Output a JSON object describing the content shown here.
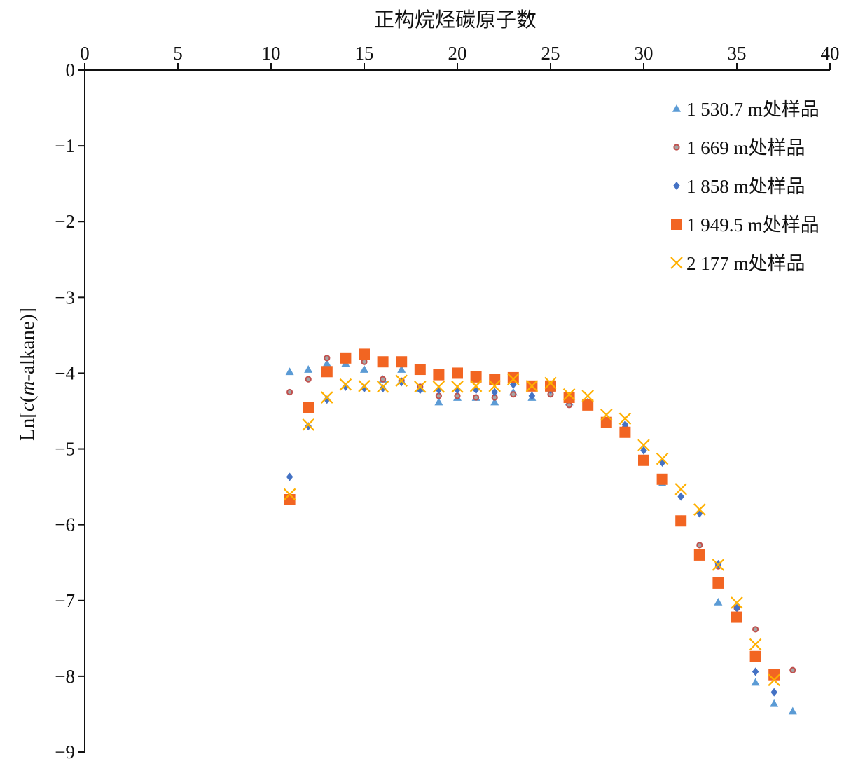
{
  "chart_data": {
    "type": "scatter",
    "xlabel": "正构烷烃碳原子数",
    "ylabel": "Ln[c(m-alkane)]",
    "xlim": [
      0,
      40
    ],
    "ylim": [
      -9,
      0
    ],
    "x_ticks": [
      "0",
      "5",
      "10",
      "15",
      "20",
      "25",
      "30",
      "35",
      "40"
    ],
    "y_ticks": [
      "0",
      "−1",
      "−2",
      "−3",
      "−4",
      "−5",
      "−6",
      "−7",
      "−8",
      "−9"
    ],
    "x_axis_position": "top",
    "legend_position": "top-right",
    "grid": false,
    "series": [
      {
        "name": "1 530.7 m处样品",
        "marker": "triangle",
        "color": "#5b9bd5",
        "points": [
          [
            11,
            -3.98
          ],
          [
            12,
            -3.95
          ],
          [
            13,
            -3.87
          ],
          [
            14,
            -3.87
          ],
          [
            15,
            -3.95
          ],
          [
            16,
            -4.08
          ],
          [
            17,
            -3.95
          ],
          [
            18,
            -4.2
          ],
          [
            19,
            -4.38
          ],
          [
            20,
            -4.32
          ],
          [
            21,
            -4.32
          ],
          [
            22,
            -4.38
          ],
          [
            23,
            -4.25
          ],
          [
            24,
            -4.32
          ],
          [
            25,
            -4.2
          ],
          [
            26,
            -4.38
          ],
          [
            27,
            -4.42
          ],
          [
            28,
            -4.68
          ],
          [
            29,
            -4.75
          ],
          [
            30,
            -5.15
          ],
          [
            31,
            -5.45
          ],
          [
            32,
            -5.95
          ],
          [
            33,
            -6.4
          ],
          [
            34,
            -7.02
          ],
          [
            35,
            -7.2
          ],
          [
            36,
            -8.08
          ],
          [
            37,
            -8.36
          ],
          [
            38,
            -8.46
          ]
        ]
      },
      {
        "name": "1 669 m处样品",
        "marker": "circle",
        "color": "#a5a5a5",
        "edge": "#c0504d",
        "points": [
          [
            11,
            -4.25
          ],
          [
            12,
            -4.08
          ],
          [
            13,
            -3.8
          ],
          [
            14,
            -3.82
          ],
          [
            15,
            -3.85
          ],
          [
            16,
            -4.08
          ],
          [
            17,
            -4.1
          ],
          [
            18,
            -4.18
          ],
          [
            19,
            -4.3
          ],
          [
            20,
            -4.3
          ],
          [
            21,
            -4.32
          ],
          [
            22,
            -4.32
          ],
          [
            23,
            -4.28
          ],
          [
            24,
            -4.2
          ],
          [
            25,
            -4.28
          ],
          [
            26,
            -4.42
          ],
          [
            27,
            -4.42
          ],
          [
            28,
            -4.62
          ],
          [
            29,
            -4.72
          ],
          [
            30,
            -5.12
          ],
          [
            31,
            -5.42
          ],
          [
            32,
            -5.92
          ],
          [
            33,
            -6.27
          ],
          [
            34,
            -6.55
          ],
          [
            35,
            -7.1
          ],
          [
            36,
            -7.38
          ],
          [
            37,
            -7.98
          ],
          [
            38,
            -7.92
          ]
        ]
      },
      {
        "name": "1 858 m处样品",
        "marker": "diamond",
        "color": "#4472c4",
        "points": [
          [
            11,
            -5.37
          ],
          [
            12,
            -4.7
          ],
          [
            13,
            -4.35
          ],
          [
            14,
            -4.18
          ],
          [
            15,
            -4.2
          ],
          [
            16,
            -4.2
          ],
          [
            17,
            -4.12
          ],
          [
            18,
            -4.22
          ],
          [
            19,
            -4.22
          ],
          [
            20,
            -4.22
          ],
          [
            21,
            -4.22
          ],
          [
            22,
            -4.25
          ],
          [
            23,
            -4.15
          ],
          [
            24,
            -4.3
          ],
          [
            25,
            -4.22
          ],
          [
            26,
            -4.32
          ],
          [
            27,
            -4.38
          ],
          [
            28,
            -4.65
          ],
          [
            29,
            -4.68
          ],
          [
            30,
            -5.02
          ],
          [
            31,
            -5.18
          ],
          [
            32,
            -5.63
          ],
          [
            33,
            -5.85
          ],
          [
            34,
            -6.52
          ],
          [
            35,
            -7.1
          ],
          [
            36,
            -7.94
          ],
          [
            37,
            -8.21
          ]
        ]
      },
      {
        "name": "1 949.5 m处样品",
        "marker": "square",
        "color": "#f26522",
        "points": [
          [
            11,
            -5.67
          ],
          [
            12,
            -4.45
          ],
          [
            13,
            -3.98
          ],
          [
            14,
            -3.8
          ],
          [
            15,
            -3.75
          ],
          [
            16,
            -3.85
          ],
          [
            17,
            -3.85
          ],
          [
            18,
            -3.95
          ],
          [
            19,
            -4.02
          ],
          [
            20,
            -4.0
          ],
          [
            21,
            -4.05
          ],
          [
            22,
            -4.08
          ],
          [
            23,
            -4.06
          ],
          [
            24,
            -4.17
          ],
          [
            25,
            -4.17
          ],
          [
            26,
            -4.32
          ],
          [
            27,
            -4.42
          ],
          [
            28,
            -4.65
          ],
          [
            29,
            -4.78
          ],
          [
            30,
            -5.15
          ],
          [
            31,
            -5.4
          ],
          [
            32,
            -5.95
          ],
          [
            33,
            -6.4
          ],
          [
            34,
            -6.77
          ],
          [
            35,
            -7.22
          ],
          [
            36,
            -7.74
          ],
          [
            37,
            -7.98
          ]
        ]
      },
      {
        "name": "2 177 m处样品",
        "marker": "x",
        "color": "#ffb000",
        "points": [
          [
            11,
            -5.6
          ],
          [
            12,
            -4.68
          ],
          [
            13,
            -4.32
          ],
          [
            14,
            -4.15
          ],
          [
            15,
            -4.17
          ],
          [
            16,
            -4.18
          ],
          [
            17,
            -4.1
          ],
          [
            18,
            -4.18
          ],
          [
            19,
            -4.18
          ],
          [
            20,
            -4.18
          ],
          [
            21,
            -4.17
          ],
          [
            22,
            -4.17
          ],
          [
            23,
            -4.08
          ],
          [
            24,
            -4.17
          ],
          [
            25,
            -4.13
          ],
          [
            26,
            -4.28
          ],
          [
            27,
            -4.3
          ],
          [
            28,
            -4.55
          ],
          [
            29,
            -4.6
          ],
          [
            30,
            -4.95
          ],
          [
            31,
            -5.13
          ],
          [
            32,
            -5.53
          ],
          [
            33,
            -5.8
          ],
          [
            34,
            -6.53
          ],
          [
            35,
            -7.03
          ],
          [
            36,
            -7.58
          ],
          [
            37,
            -8.05
          ]
        ]
      }
    ]
  }
}
